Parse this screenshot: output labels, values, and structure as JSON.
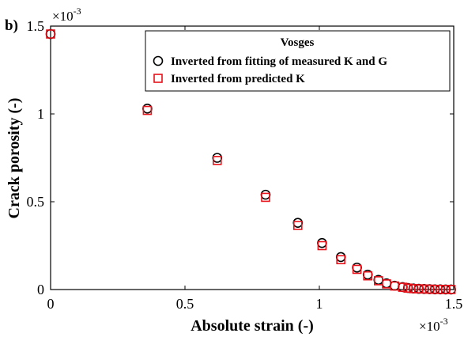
{
  "chart_data": {
    "type": "scatter",
    "panel_label": "b)",
    "xlabel": "Absolute strain (-)",
    "ylabel": "Crack porosity (-)",
    "x_multiplier": "×10",
    "x_exponent": "-3",
    "y_multiplier": "×10",
    "y_exponent": "-3",
    "xlim": [
      0,
      1.5
    ],
    "ylim": [
      0,
      1.5
    ],
    "xticks": [
      0,
      0.5,
      1,
      1.5
    ],
    "xtick_labels": [
      "0",
      "0.5",
      "1",
      "1.5"
    ],
    "yticks": [
      0,
      0.5,
      1,
      1.5
    ],
    "ytick_labels": [
      "0",
      "0.5",
      "1",
      "1.5"
    ],
    "grid": false,
    "legend": {
      "title": "Vosges",
      "placement": "top-right"
    },
    "series": [
      {
        "name": "Inverted from fitting of measured K and G",
        "marker": "circle",
        "color": "#000000",
        "x": [
          0,
          0.36,
          0.62,
          0.8,
          0.92,
          1.01,
          1.08,
          1.14,
          1.18,
          1.22,
          1.25,
          1.28,
          1.31,
          1.33,
          1.35,
          1.37,
          1.39,
          1.41,
          1.43,
          1.45,
          1.47,
          1.49
        ],
        "y": [
          1.455,
          1.03,
          0.75,
          0.54,
          0.38,
          0.265,
          0.185,
          0.125,
          0.085,
          0.055,
          0.035,
          0.022,
          0.014,
          0.009,
          0.006,
          0.004,
          0.003,
          0.002,
          0.001,
          0.001,
          0.0005,
          0.0002
        ]
      },
      {
        "name": "Inverted from predicted K",
        "marker": "square",
        "color": "#e8121a",
        "x": [
          0,
          0.36,
          0.62,
          0.8,
          0.92,
          1.01,
          1.08,
          1.14,
          1.18,
          1.22,
          1.25,
          1.28,
          1.31,
          1.33,
          1.35,
          1.37,
          1.39,
          1.41,
          1.43,
          1.45,
          1.47,
          1.49
        ],
        "y": [
          1.455,
          1.02,
          0.735,
          0.525,
          0.365,
          0.25,
          0.17,
          0.115,
          0.078,
          0.05,
          0.032,
          0.02,
          0.013,
          0.008,
          0.005,
          0.004,
          0.003,
          0.002,
          0.001,
          0.001,
          0.0005,
          0.0002
        ]
      }
    ]
  }
}
